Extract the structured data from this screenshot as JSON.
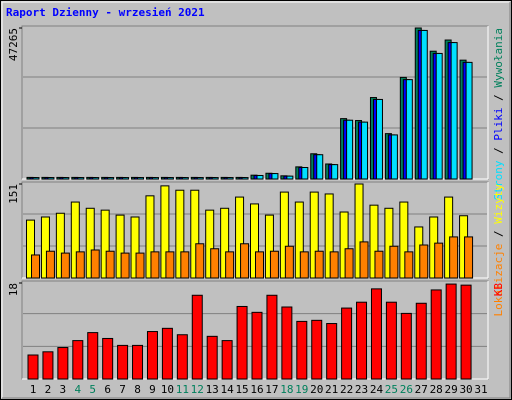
{
  "chart_data": [
    {
      "type": "bar",
      "title": "Raport Dzienny -  wrzesień 2021",
      "ylim": [
        0,
        47265
      ],
      "yticks": [
        47265
      ],
      "series": [
        {
          "name": "Wywołania",
          "color": "#00805c",
          "values": [
            500,
            500,
            500,
            500,
            500,
            500,
            500,
            500,
            500,
            500,
            500,
            500,
            500,
            500,
            500,
            1200,
            1800,
            1000,
            3800,
            7900,
            4700,
            18900,
            18300,
            25500,
            14200,
            31800,
            47265,
            40000,
            43500,
            37200,
            null
          ]
        },
        {
          "name": "Pliki",
          "color": "#0000ff",
          "values": [
            450,
            450,
            450,
            450,
            450,
            450,
            450,
            450,
            450,
            450,
            450,
            450,
            450,
            450,
            450,
            1100,
            1700,
            900,
            3600,
            7600,
            4500,
            18400,
            17800,
            24900,
            13800,
            31100,
            46500,
            39300,
            42700,
            36500,
            null
          ]
        },
        {
          "name": "Strony",
          "color": "#00e0ff",
          "values": [
            450,
            450,
            450,
            450,
            450,
            450,
            450,
            450,
            450,
            450,
            450,
            450,
            450,
            450,
            450,
            1100,
            1700,
            900,
            3600,
            7600,
            4500,
            18400,
            17800,
            24900,
            13800,
            31100,
            46500,
            39300,
            42700,
            36500,
            null
          ]
        }
      ]
    },
    {
      "type": "bar",
      "ylim": [
        0,
        151
      ],
      "yticks": [
        151
      ],
      "series": [
        {
          "name": "Wizyty",
          "color": "#ffff00",
          "values": [
            93,
            98,
            104,
            122,
            112,
            109,
            101,
            98,
            132,
            148,
            141,
            141,
            109,
            112,
            130,
            119,
            101,
            138,
            122,
            138,
            135,
            106,
            151,
            117,
            112,
            122,
            82,
            98,
            130,
            100,
            null
          ]
        },
        {
          "name": "Lokalizacje",
          "color": "#ff8000",
          "values": [
            37,
            43,
            40,
            42,
            45,
            43,
            40,
            40,
            42,
            42,
            42,
            55,
            47,
            42,
            55,
            42,
            43,
            51,
            42,
            43,
            42,
            47,
            58,
            43,
            51,
            42,
            53,
            56,
            66,
            66,
            null
          ]
        }
      ]
    },
    {
      "type": "bar",
      "ylim": [
        0,
        18
      ],
      "yticks": [
        18
      ],
      "categories": [
        "1",
        "2",
        "3",
        "4",
        "5",
        "6",
        "7",
        "8",
        "9",
        "10",
        "11",
        "12",
        "13",
        "14",
        "15",
        "16",
        "17",
        "18",
        "19",
        "20",
        "21",
        "22",
        "23",
        "24",
        "25",
        "26",
        "27",
        "28",
        "29",
        "30",
        "31"
      ],
      "category_colors": [
        "#000000",
        "#000000",
        "#000000",
        "#00805c",
        "#00805c",
        "#000000",
        "#000000",
        "#000000",
        "#000000",
        "#000000",
        "#00805c",
        "#00805c",
        "#000000",
        "#000000",
        "#000000",
        "#000000",
        "#000000",
        "#00805c",
        "#00805c",
        "#000000",
        "#000000",
        "#000000",
        "#000000",
        "#000000",
        "#00805c",
        "#00805c",
        "#000000",
        "#000000",
        "#000000",
        "#000000",
        "#000000"
      ],
      "series": [
        {
          "name": "KB",
          "color": "#ff0000",
          "values": [
            4.5,
            5.1,
            5.9,
            7.2,
            8.7,
            7.6,
            6.3,
            6.3,
            8.9,
            9.5,
            8.3,
            15.7,
            8.0,
            7.2,
            13.6,
            12.5,
            15.7,
            13.5,
            10.8,
            11.0,
            10.4,
            13.3,
            14.4,
            16.9,
            14.4,
            12.3,
            14.2,
            16.7,
            17.8,
            17.6,
            null
          ]
        }
      ]
    }
  ]
}
